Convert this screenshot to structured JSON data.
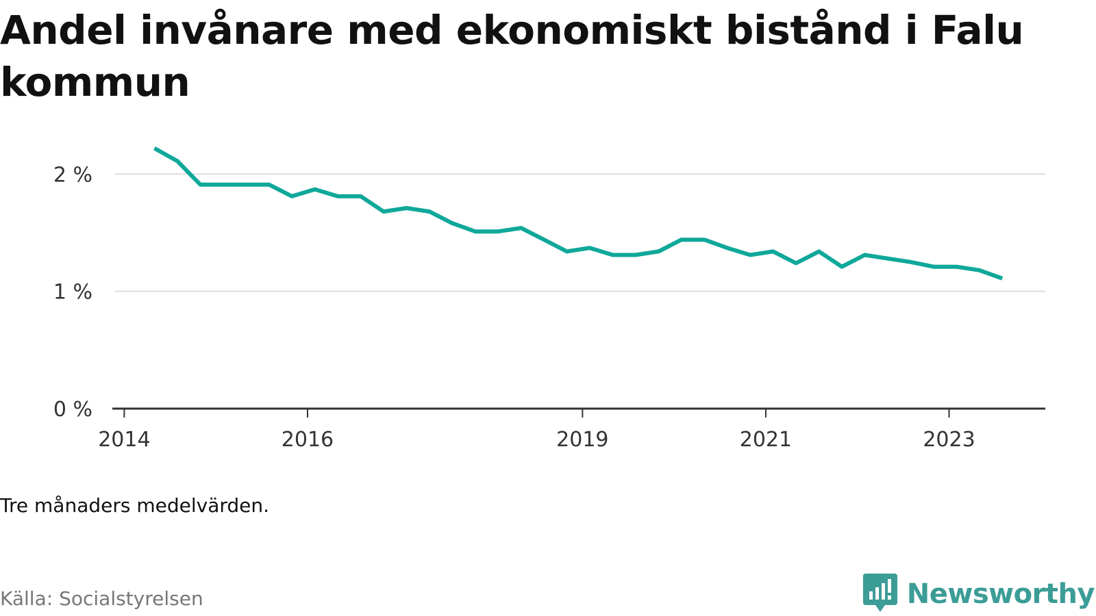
{
  "title": "Andel invånare med ekonomiskt bistånd i Falu kommun",
  "note": "Tre månaders medelvärden.",
  "source": "Källa: Socialstyrelsen",
  "brand": {
    "name": "Newsworthy",
    "icon": "newsworthy-logo-icon",
    "color": "#3c9c96"
  },
  "colors": {
    "line": "#0fa89a",
    "grid": "#dddddd",
    "axis": "#333333"
  },
  "chart_data": {
    "type": "line",
    "title": "Andel invånare med ekonomiskt bistånd i Falu kommun",
    "xlabel": "",
    "ylabel": "",
    "x_ticks": [
      {
        "label": "2014",
        "x": 2014.0
      },
      {
        "label": "2016",
        "x": 2016.0
      },
      {
        "label": "2019",
        "x": 2019.0
      },
      {
        "label": "2021",
        "x": 2021.0
      },
      {
        "label": "2023",
        "x": 2023.0
      }
    ],
    "y_ticks": [
      {
        "label": "0 %",
        "y": 0
      },
      {
        "label": "1 %",
        "y": 1
      },
      {
        "label": "2 %",
        "y": 2
      }
    ],
    "xlim": [
      2013.9,
      2024.05
    ],
    "ylim": [
      0,
      2.2
    ],
    "grid": true,
    "series": [
      {
        "x": [
          2014.33,
          2014.58,
          2014.83,
          2015.08,
          2015.33,
          2015.58,
          2015.83,
          2016.08,
          2016.33,
          2016.58,
          2016.83,
          2017.08,
          2017.33,
          2017.58,
          2017.83,
          2018.08,
          2018.33,
          2018.58,
          2018.83,
          2019.08,
          2019.33,
          2019.58,
          2019.83,
          2020.08,
          2020.33,
          2020.58,
          2020.83,
          2021.08,
          2021.33,
          2021.58,
          2021.83,
          2022.08,
          2022.33,
          2022.58,
          2022.83,
          2023.08,
          2023.33,
          2023.58
        ],
        "y": [
          2.22,
          2.11,
          1.91,
          1.91,
          1.91,
          1.91,
          1.81,
          1.87,
          1.81,
          1.81,
          1.68,
          1.71,
          1.68,
          1.58,
          1.51,
          1.51,
          1.54,
          1.44,
          1.34,
          1.37,
          1.31,
          1.31,
          1.34,
          1.44,
          1.44,
          1.37,
          1.31,
          1.34,
          1.24,
          1.34,
          1.21,
          1.31,
          1.28,
          1.25,
          1.21,
          1.21,
          1.18,
          1.11
        ]
      }
    ]
  }
}
